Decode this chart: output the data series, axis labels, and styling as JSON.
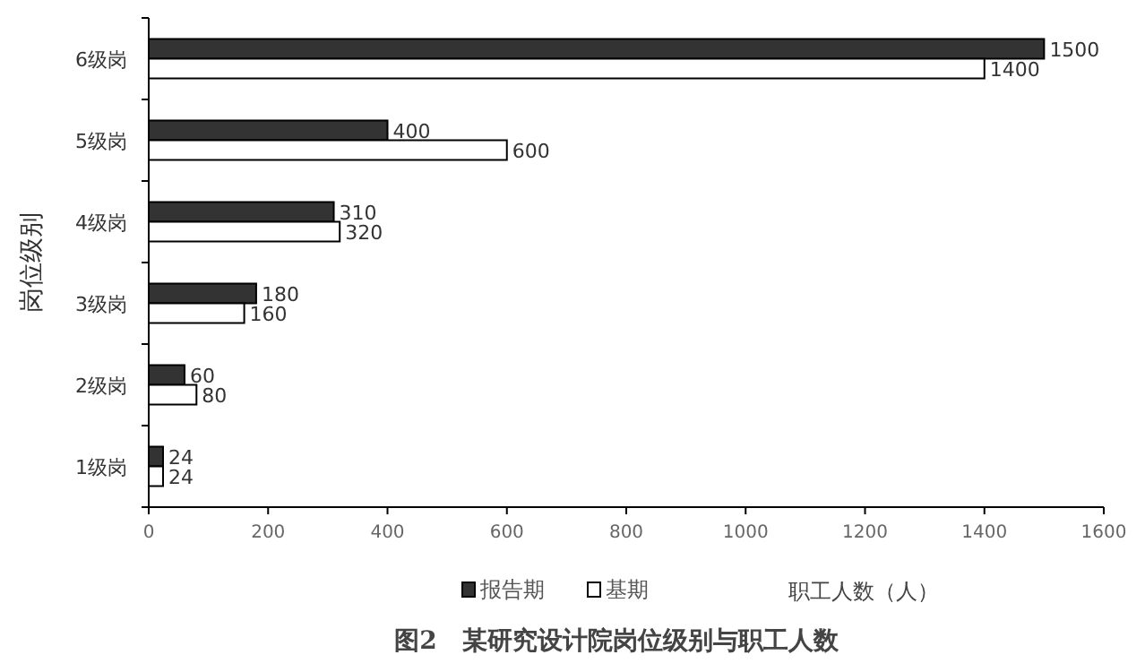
{
  "chart_data": {
    "type": "bar",
    "orientation": "horizontal",
    "title": "图2　某研究设计院岗位级别与职工人数",
    "xlabel": "职工人数（人）",
    "ylabel": "岗位级别",
    "categories": [
      "6级岗",
      "5级岗",
      "4级岗",
      "3级岗",
      "2级岗",
      "1级岗"
    ],
    "series": [
      {
        "name": "报告期",
        "color": "#333333",
        "values": [
          1500,
          400,
          310,
          180,
          60,
          24
        ]
      },
      {
        "name": "基期",
        "color": "#ffffff",
        "values": [
          1400,
          600,
          320,
          160,
          80,
          24
        ]
      }
    ],
    "xlim": [
      0,
      1600
    ],
    "xticks": [
      0,
      200,
      400,
      600,
      800,
      1000,
      1200,
      1400,
      1600
    ],
    "data_labels": true,
    "legend": "bottom"
  }
}
